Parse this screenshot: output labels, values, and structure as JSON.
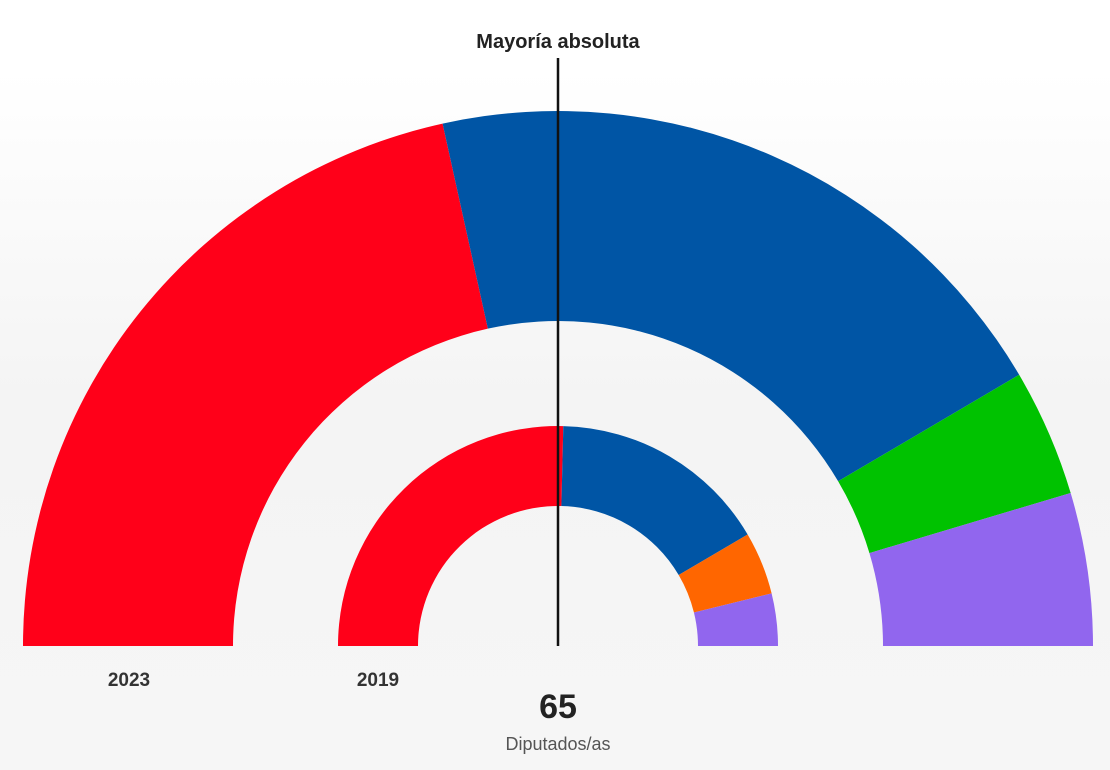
{
  "chart_data": {
    "type": "parliament-donut",
    "majority_label": "Mayoría absoluta",
    "total_seats": 65,
    "total_caption": "Diputados/as",
    "rings": [
      {
        "label": "2023",
        "segments": [
          {
            "color": "#ff0019",
            "seats": 28
          },
          {
            "color": "#0055a5",
            "seats": 26
          },
          {
            "color": "#00c200",
            "seats": 5
          },
          {
            "color": "#9166ee",
            "seats": 6
          }
        ]
      },
      {
        "label": "2019",
        "segments": [
          {
            "color": "#ff0019",
            "seats": 33
          },
          {
            "color": "#0055a5",
            "seats": 21
          },
          {
            "color": "#ff6600",
            "seats": 6
          },
          {
            "color": "#9166ee",
            "seats": 5
          }
        ]
      }
    ]
  }
}
